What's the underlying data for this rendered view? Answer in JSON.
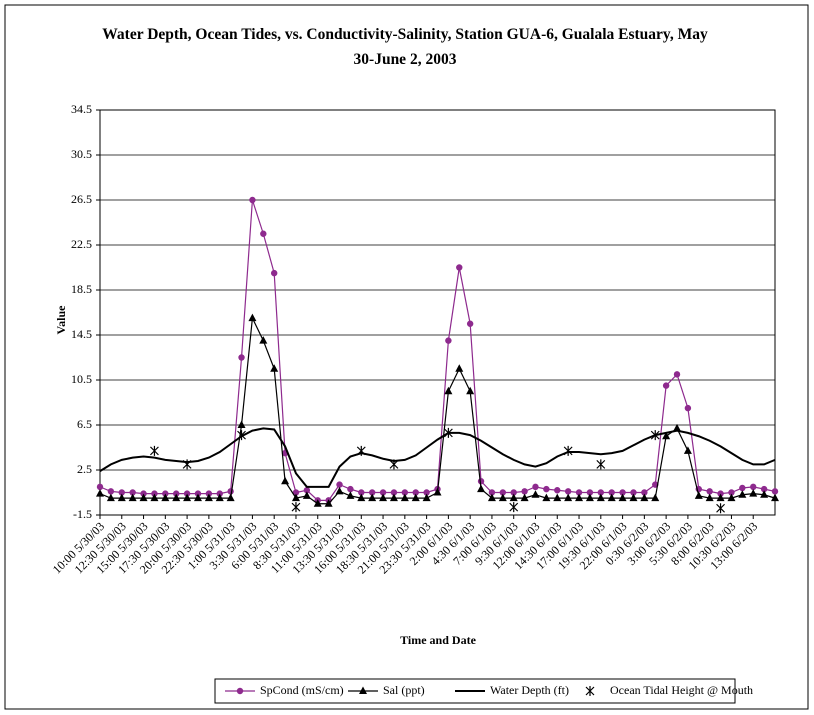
{
  "chart_data": {
    "type": "line",
    "title": "Water Depth, Ocean Tides, vs. Conductivity-Salinity, Station GUA-6, Gualala Estuary, May 30-June 2, 2003",
    "x_label": "Time and Date",
    "y_label": "Value",
    "ylim": [
      -1.5,
      34.5
    ],
    "yticks": [
      -1.5,
      2.5,
      6.5,
      10.5,
      14.5,
      18.5,
      22.5,
      26.5,
      30.5,
      34.5
    ],
    "grid": true,
    "legend": "bottom",
    "categories": [
      "10:00 5/30/03",
      null,
      "12:30 5/30/03",
      null,
      "15:00 5/30/03",
      null,
      "17:30 5/30/03",
      null,
      "20:00 5/30/03",
      null,
      "22:30 5/30/03",
      null,
      "1:00 5/31/03",
      null,
      "3:30 5/31/03",
      null,
      "6:00 5/31/03",
      null,
      "8:30 5/31/03",
      null,
      "11:00 5/31/03",
      null,
      "13:30 5/31/03",
      null,
      "16:00 5/31/03",
      null,
      "18:30 5/31/03",
      null,
      "21:00 5/31/03",
      null,
      "23:30 5/31/03",
      null,
      "2:00 6/1/03",
      null,
      "4:30 6/1/03",
      null,
      "7:00 6/1/03",
      null,
      "9:30 6/1/03",
      null,
      "12:00 6/1/03",
      null,
      "14:30 6/1/03",
      null,
      "17:00 6/1/03",
      null,
      "19:30 6/1/03",
      null,
      "22:00 6/1/03",
      null,
      "0:30 6/2/03",
      null,
      "3:00 6/2/03",
      null,
      "5:30 6/2/03",
      null,
      "8:00 6/2/03",
      null,
      "10:30 6/2/03",
      null,
      "13:00 6/2/03",
      null,
      null
    ],
    "series": [
      {
        "name": "SpCond (mS/cm)",
        "color": "#8e2a8e",
        "marker": "circle",
        "show_line": true,
        "values": [
          1.0,
          0.6,
          0.5,
          0.5,
          0.4,
          0.4,
          0.4,
          0.4,
          0.4,
          0.4,
          0.4,
          0.4,
          0.6,
          12.5,
          26.5,
          23.5,
          20,
          4,
          0.5,
          0.7,
          -0.2,
          -0.2,
          1.2,
          0.8,
          0.5,
          0.5,
          0.5,
          0.5,
          0.5,
          0.5,
          0.5,
          0.8,
          14,
          20.5,
          15.5,
          1.5,
          0.5,
          0.5,
          0.5,
          0.6,
          1.0,
          0.8,
          0.7,
          0.6,
          0.5,
          0.5,
          0.5,
          0.5,
          0.5,
          0.5,
          0.5,
          1.2,
          10,
          11,
          8,
          0.8,
          0.6,
          0.4,
          0.5,
          0.9,
          1.0,
          0.8,
          0.6
        ]
      },
      {
        "name": "Sal (ppt)",
        "color": "#000000",
        "marker": "triangle",
        "show_line": true,
        "values": [
          0.4,
          0,
          0,
          0,
          0,
          0,
          0,
          0,
          0,
          0,
          0,
          0,
          0,
          6.5,
          16,
          14,
          11.5,
          1.5,
          0,
          0.2,
          -0.5,
          -0.5,
          0.6,
          0.2,
          0,
          0,
          0,
          0,
          0,
          0,
          0,
          0.5,
          9.5,
          11.5,
          9.5,
          0.8,
          0,
          0,
          0,
          0,
          0.3,
          0,
          0,
          0,
          0,
          0,
          0,
          0,
          0,
          0,
          0,
          0,
          5.5,
          6.2,
          4.2,
          0.2,
          0,
          0,
          0,
          0.3,
          0.4,
          0.3,
          0
        ]
      },
      {
        "name": "Water Depth (ft)",
        "color": "#000000",
        "marker": null,
        "show_line": true,
        "values": [
          2.4,
          3.0,
          3.4,
          3.6,
          3.7,
          3.6,
          3.4,
          3.3,
          3.2,
          3.3,
          3.6,
          4.1,
          4.8,
          5.5,
          6.0,
          6.2,
          6.1,
          4.6,
          2.2,
          1.0,
          1.0,
          1.0,
          2.8,
          3.7,
          4.0,
          3.8,
          3.5,
          3.3,
          3.4,
          3.8,
          4.5,
          5.2,
          5.8,
          5.8,
          5.6,
          5.1,
          4.5,
          3.9,
          3.4,
          3.0,
          2.8,
          3.1,
          3.7,
          4.1,
          4.1,
          4.0,
          3.9,
          4.0,
          4.2,
          4.7,
          5.2,
          5.6,
          5.8,
          6.0,
          5.8,
          5.5,
          5.1,
          4.6,
          4.0,
          3.4,
          3.0,
          3.0,
          3.4
        ]
      },
      {
        "name": "Ocean Tidal Height @ Mouth",
        "color": "#000000",
        "marker": "asterisk",
        "show_line": false,
        "values": [
          null,
          null,
          null,
          null,
          null,
          4.2,
          null,
          null,
          3.0,
          null,
          null,
          null,
          null,
          5.6,
          null,
          null,
          null,
          null,
          -0.8,
          null,
          null,
          null,
          null,
          null,
          4.2,
          null,
          null,
          3.0,
          null,
          null,
          null,
          null,
          5.8,
          null,
          null,
          null,
          null,
          null,
          -0.8,
          null,
          null,
          null,
          null,
          4.2,
          null,
          null,
          3.0,
          null,
          null,
          null,
          null,
          5.6,
          null,
          null,
          null,
          null,
          null,
          -0.9,
          null,
          null,
          null,
          null,
          null
        ]
      }
    ]
  }
}
